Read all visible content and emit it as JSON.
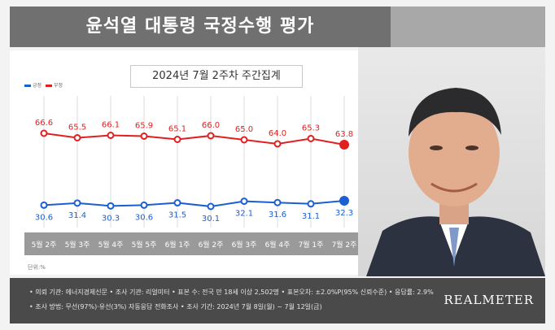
{
  "header": {
    "title": "윤석열 대통령 국정수행 평가"
  },
  "subtitle": "2024년 7월 2주차 주간집계",
  "legend": {
    "positive": "긍정",
    "negative": "부정"
  },
  "unit": "단위:%",
  "colors": {
    "negative": "#e02020",
    "positive": "#1a5fd0",
    "header": "#707070",
    "footer": "#4a4a4a",
    "grid": "#dcdcdc"
  },
  "chart_data": {
    "type": "line",
    "categories": [
      "5월 2주",
      "5월 3주",
      "5월 4주",
      "5월 5주",
      "6월 1주",
      "6월 2주",
      "6월 3주",
      "6월 4주",
      "7월 1주",
      "7월 2주"
    ],
    "series": [
      {
        "name": "부정",
        "values": [
          66.6,
          65.5,
          66.1,
          65.9,
          65.1,
          66.0,
          65.0,
          64.0,
          65.3,
          63.8
        ]
      },
      {
        "name": "긍정",
        "values": [
          30.6,
          31.4,
          30.3,
          30.6,
          31.5,
          30.1,
          32.1,
          31.6,
          31.1,
          32.3
        ]
      }
    ],
    "grid": true
  },
  "footer": {
    "line1": "• 의뢰 기관: 에너지경제신문 • 조사 기관: 리얼미터 • 표본 수: 전국 만 18세 이상 2,502명 • 표본오차: ±2.0%P(95% 신뢰수준) • 응답률: 2.9%",
    "line2": "• 조사 방법: 무선(97%)·유선(3%) 자동응답 전화조사 • 조사 기간: 2024년 7월 8일(월) ~ 7월 12일(금)",
    "brand": "REALMETER"
  }
}
